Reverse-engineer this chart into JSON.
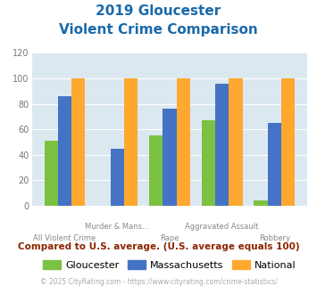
{
  "title_line1": "2019 Gloucester",
  "title_line2": "Violent Crime Comparison",
  "categories": [
    "All Violent Crime",
    "Murder & Mans...",
    "Rape",
    "Aggravated Assault",
    "Robbery"
  ],
  "gloucester": [
    51,
    0,
    55,
    67,
    4
  ],
  "massachusetts": [
    86,
    45,
    76,
    96,
    65
  ],
  "national": [
    100,
    100,
    100,
    100,
    100
  ],
  "gloucester_color": "#7bc142",
  "massachusetts_color": "#4472c4",
  "national_color": "#ffa830",
  "ylim": [
    0,
    120
  ],
  "yticks": [
    0,
    20,
    40,
    60,
    80,
    100,
    120
  ],
  "top_labels": [
    "",
    "Murder & Mans...",
    "",
    "Aggravated Assault",
    ""
  ],
  "bottom_labels": [
    "All Violent Crime",
    "",
    "Rape",
    "",
    "Robbery"
  ],
  "bg_color": "#dce8f0",
  "title_color": "#1a6aaa",
  "annotation": "Compared to U.S. average. (U.S. average equals 100)",
  "footer": "© 2025 CityRating.com - https://www.cityrating.com/crime-statistics/",
  "annotation_color": "#8b2500",
  "footer_color": "#aaaaaa",
  "footer_link_color": "#4488cc",
  "legend_labels": [
    "Gloucester",
    "Massachusetts",
    "National"
  ]
}
